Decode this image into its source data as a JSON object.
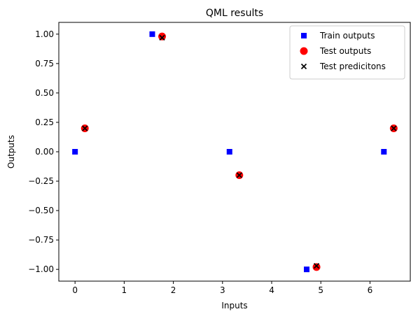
{
  "chart_data": {
    "type": "scatter",
    "title": "QML results",
    "xlabel": "Inputs",
    "ylabel": "Outputs",
    "xlim": [
      -0.33,
      6.82
    ],
    "ylim": [
      -1.1,
      1.1
    ],
    "xticks": [
      0,
      1,
      2,
      3,
      4,
      5,
      6
    ],
    "yticks": [
      1.0,
      0.75,
      0.5,
      0.25,
      0.0,
      -0.25,
      -0.5,
      -0.75,
      -1.0
    ],
    "ytick_labels": [
      "1.00",
      "0.75",
      "0.50",
      "0.25",
      "0.00",
      "−0.25",
      "−0.50",
      "−0.75",
      "−1.00"
    ],
    "grid": false,
    "legend_position": "top-right",
    "series": [
      {
        "name": "Train outputs",
        "marker": "square",
        "color": "#0000ff",
        "x": [
          0.0,
          1.571,
          3.142,
          4.712,
          6.283
        ],
        "y": [
          0.0,
          1.0,
          0.0,
          -1.0,
          0.0
        ]
      },
      {
        "name": "Test outputs",
        "marker": "circle",
        "color": "#ff0000",
        "x": [
          0.2,
          1.771,
          3.342,
          4.912,
          6.483
        ],
        "y": [
          0.199,
          0.98,
          -0.199,
          -0.98,
          0.199
        ]
      },
      {
        "name": "Test predicitons",
        "marker": "x",
        "color": "#000000",
        "x": [
          0.2,
          1.771,
          3.342,
          4.912,
          6.483
        ],
        "y": [
          0.199,
          0.97,
          -0.199,
          -0.97,
          0.199
        ]
      }
    ]
  }
}
